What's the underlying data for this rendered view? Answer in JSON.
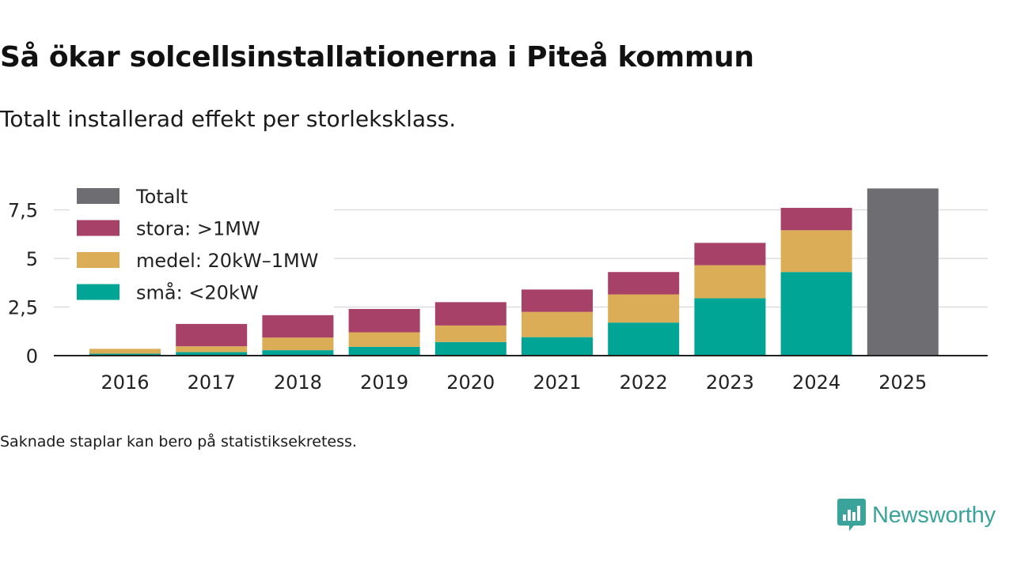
{
  "title": "Så ökar solcellsinstallationerna i Piteå kommun",
  "subtitle": "Totalt installerad effekt per storleksklass.",
  "footnote": "Saknade staplar kan bero på statistiksekretess.",
  "brand": "Newsworthy",
  "colors": {
    "small": "#00a596",
    "medium": "#dbad57",
    "large": "#a74167",
    "total": "#6e6d72",
    "grid": "#dddddd",
    "axis": "#222222",
    "brand": "#3aa39a"
  },
  "chart_data": {
    "type": "bar",
    "stacked": true,
    "categories": [
      "2016",
      "2017",
      "2018",
      "2019",
      "2020",
      "2021",
      "2022",
      "2023",
      "2024",
      "2025"
    ],
    "series": [
      {
        "key": "small",
        "name": "små: <20kW",
        "values": [
          0.1,
          0.18,
          0.28,
          0.45,
          0.7,
          0.95,
          1.7,
          2.95,
          4.3,
          null
        ]
      },
      {
        "key": "medium",
        "name": "medel: 20kW–1MW",
        "values": [
          0.25,
          0.3,
          0.65,
          0.75,
          0.85,
          1.3,
          1.45,
          1.7,
          2.15,
          null
        ]
      },
      {
        "key": "large",
        "name": "stora: >1MW",
        "values": [
          0,
          1.15,
          1.15,
          1.2,
          1.2,
          1.15,
          1.15,
          1.15,
          1.15,
          null
        ]
      },
      {
        "key": "total",
        "name": "Totalt",
        "values": [
          null,
          null,
          null,
          null,
          null,
          null,
          null,
          null,
          null,
          8.6
        ]
      }
    ],
    "legend_order": [
      "total",
      "large",
      "medium",
      "small"
    ],
    "legend_position": "top-left",
    "y_ticks": [
      0,
      2.5,
      5,
      7.5
    ],
    "y_tick_labels": [
      "0",
      "2,5",
      "5",
      "7,5"
    ],
    "ylim": [
      0,
      8.6
    ],
    "grid": true,
    "xlabel": "",
    "ylabel": ""
  }
}
